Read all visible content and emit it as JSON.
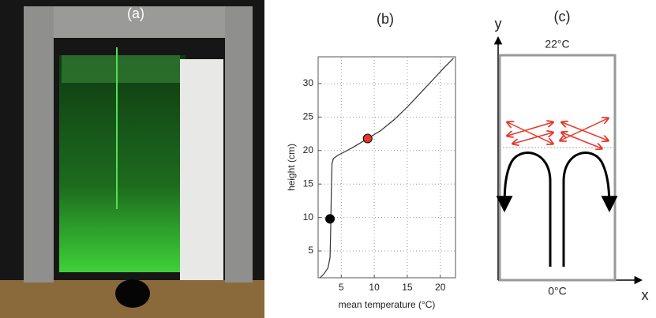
{
  "panels": {
    "a": {
      "label": "(a)"
    },
    "c": {
      "label": "(c)",
      "y_axis": "y",
      "x_axis": "x",
      "top_temperature": "22°C",
      "bottom_temperature": "0°C"
    }
  },
  "chart_data": {
    "type": "line",
    "title": "(b)",
    "x_label": "mean temperature (°C)",
    "y_label": "height (cm)",
    "x": [
      1.8,
      2.4,
      3.0,
      3.3,
      3.4,
      3.5,
      3.6,
      3.8,
      4.5,
      5.5,
      7.0,
      9.0,
      11.0,
      13.0,
      15.0,
      17.0,
      19.0,
      20.5,
      22.0
    ],
    "values": [
      1,
      1.6,
      2.5,
      4,
      8,
      14,
      18,
      18.8,
      19.3,
      19.8,
      20.6,
      21.8,
      23.0,
      24.6,
      26.5,
      28.6,
      30.7,
      32.3,
      33.8
    ],
    "color": "#333333",
    "markers": [
      {
        "x": 3.3,
        "y": 9.8,
        "color": "#000000"
      },
      {
        "x": 9.0,
        "y": 21.8,
        "color": "#e8372a"
      }
    ],
    "xlim": [
      1.5,
      22.3
    ],
    "ylim": [
      1,
      34
    ],
    "xticks": [
      5,
      10,
      15,
      20
    ],
    "yticks": [
      5,
      10,
      15,
      20,
      25,
      30
    ],
    "grid": true
  }
}
